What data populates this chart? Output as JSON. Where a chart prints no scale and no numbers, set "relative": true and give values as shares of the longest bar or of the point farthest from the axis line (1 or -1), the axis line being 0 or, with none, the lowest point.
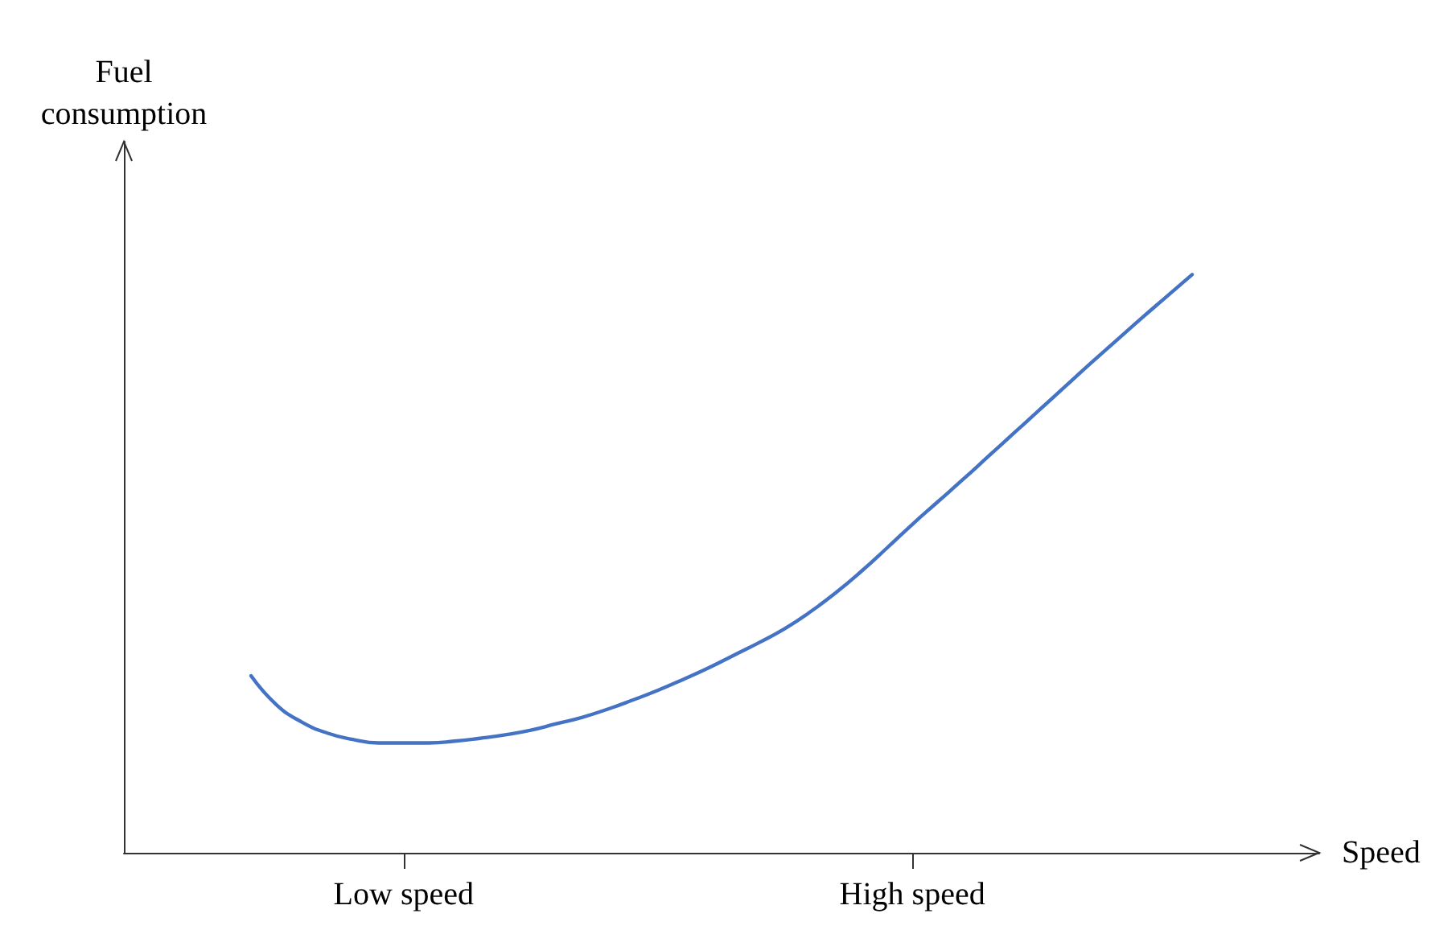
{
  "chart_data": {
    "type": "line",
    "relative": true,
    "xlabel": "Speed",
    "ylabel": "Fuel consumption",
    "categories": [
      null,
      null,
      null,
      null,
      null,
      null,
      null,
      null,
      null,
      null,
      null,
      "Low speed",
      null,
      null,
      null,
      null,
      null,
      null,
      null,
      null,
      null,
      null,
      null,
      null,
      null,
      null,
      null,
      null,
      null,
      null,
      null,
      "High speed",
      null,
      null,
      null,
      null,
      null,
      null,
      null,
      null,
      null,
      null,
      null,
      null,
      null,
      null,
      null,
      null
    ],
    "series": [
      {
        "color": "#4472c4",
        "values": [
          null,
          null,
          null,
          null,
          null,
          0.306,
          0.256,
          0.226,
          0.207,
          0.196,
          0.19,
          0.19,
          0.19,
          0.193,
          0.198,
          0.204,
          0.212,
          0.223,
          0.234,
          0.248,
          0.264,
          0.281,
          0.3,
          0.32,
          0.342,
          0.364,
          0.388,
          0.417,
          0.45,
          0.487,
          0.527,
          0.568,
          0.607,
          0.646,
          0.686,
          0.726,
          0.766,
          0.806,
          0.846,
          0.885,
          0.924,
          0.962,
          1,
          null,
          null,
          null,
          null,
          null
        ]
      }
    ],
    "grid": false,
    "marker": "none",
    "line_style": "solid"
  }
}
